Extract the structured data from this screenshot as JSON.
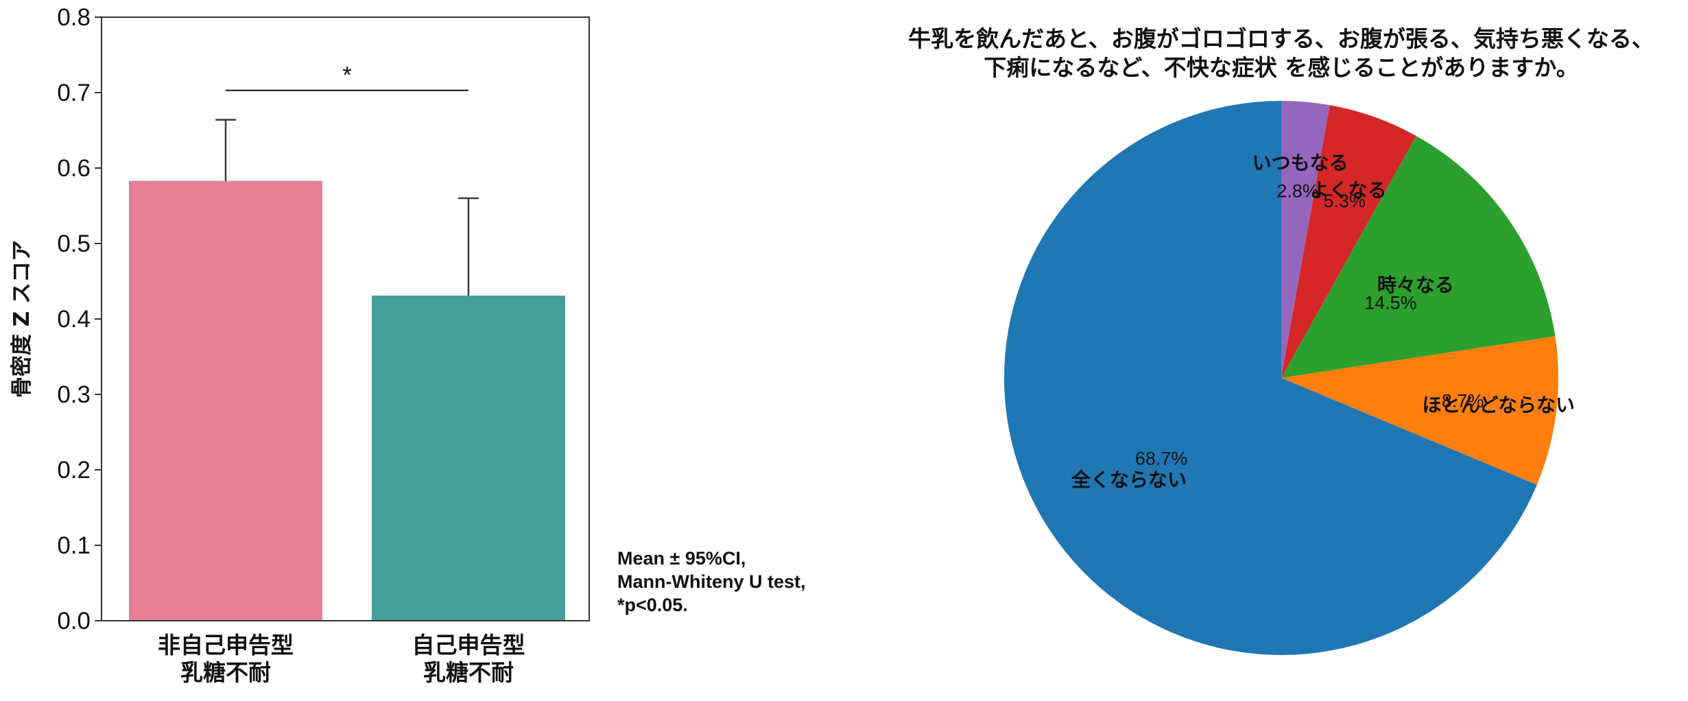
{
  "chart_data": [
    {
      "type": "bar",
      "ylabel": "骨密度 Z スコア",
      "ylim": [
        0,
        0.8
      ],
      "yticks": [
        "0.0",
        "0.1",
        "0.2",
        "0.3",
        "0.4",
        "0.5",
        "0.6",
        "0.7",
        "0.8"
      ],
      "categories": [
        {
          "line1": "非自己申告型",
          "line2": "乳糖不耐"
        },
        {
          "line1": "自己申告型",
          "line2": "乳糖不耐"
        }
      ],
      "values": [
        0.583,
        0.431
      ],
      "ci_upper": [
        0.664,
        0.56
      ],
      "colors": [
        "#e58094",
        "#459e9a"
      ],
      "significance": {
        "label": "*",
        "y": 0.703
      },
      "note": {
        "line1": "Mean ± 95%CI,",
        "line2": "Mann-Whiteny U test,",
        "line3": "*p<0.05."
      }
    },
    {
      "type": "pie",
      "title": {
        "line1": "牛乳を飲んだあと、お腹がゴロゴロする、お腹が張る、気持ち悪くなる、",
        "line2": "下痢になるなど、不快な症状 を感じることがありますか。"
      },
      "slices": [
        {
          "label": "いつもなる",
          "value": 2.8,
          "pct": "2.8%",
          "color": "#9467bd"
        },
        {
          "label": "よくなる",
          "value": 5.3,
          "pct": "5.3%",
          "color": "#d62728"
        },
        {
          "label": "時々なる",
          "value": 14.5,
          "pct": "14.5%",
          "color": "#2ca02c"
        },
        {
          "label": "ほとんどならない",
          "value": 8.7,
          "pct": "8.7%",
          "color": "#ff7f0e"
        },
        {
          "label": "全くならない",
          "value": 68.7,
          "pct": "68.7%",
          "color": "#1f77b4"
        }
      ]
    }
  ]
}
